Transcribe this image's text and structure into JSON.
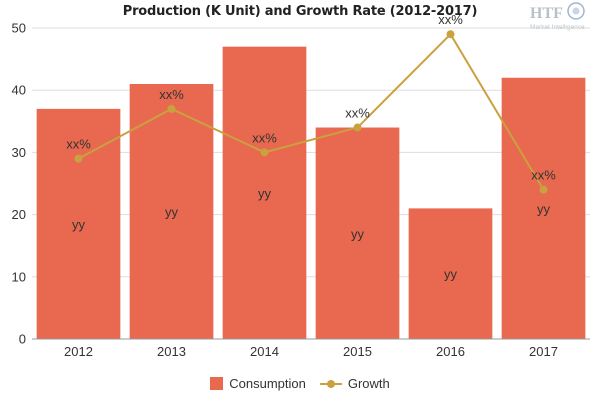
{
  "colors": {
    "bar": "#e8694f",
    "line": "#c9a13f",
    "grid": "#dddddd",
    "axis": "#999999"
  },
  "logo_text": "HTF Market Intelligence",
  "chart_data": {
    "type": "bar",
    "title": "Production (K Unit) and Growth Rate (2012-2017)",
    "categories": [
      "2012",
      "2013",
      "2014",
      "2015",
      "2016",
      "2017"
    ],
    "ylim": [
      0,
      50
    ],
    "yticks": [
      0,
      10,
      20,
      30,
      40,
      50
    ],
    "grid": true,
    "legend_position": "bottom",
    "series": [
      {
        "name": "Consumption",
        "type": "bar",
        "values": [
          37,
          41,
          47,
          34,
          21,
          42
        ],
        "labels": [
          "yy",
          "yy",
          "yy",
          "yy",
          "yy",
          "yy"
        ]
      },
      {
        "name": "Growth",
        "type": "line",
        "values": [
          29,
          37,
          30,
          34,
          49,
          24
        ],
        "labels": [
          "xx%",
          "xx%",
          "xx%",
          "xx%",
          "xx%",
          "xx%"
        ]
      }
    ]
  }
}
